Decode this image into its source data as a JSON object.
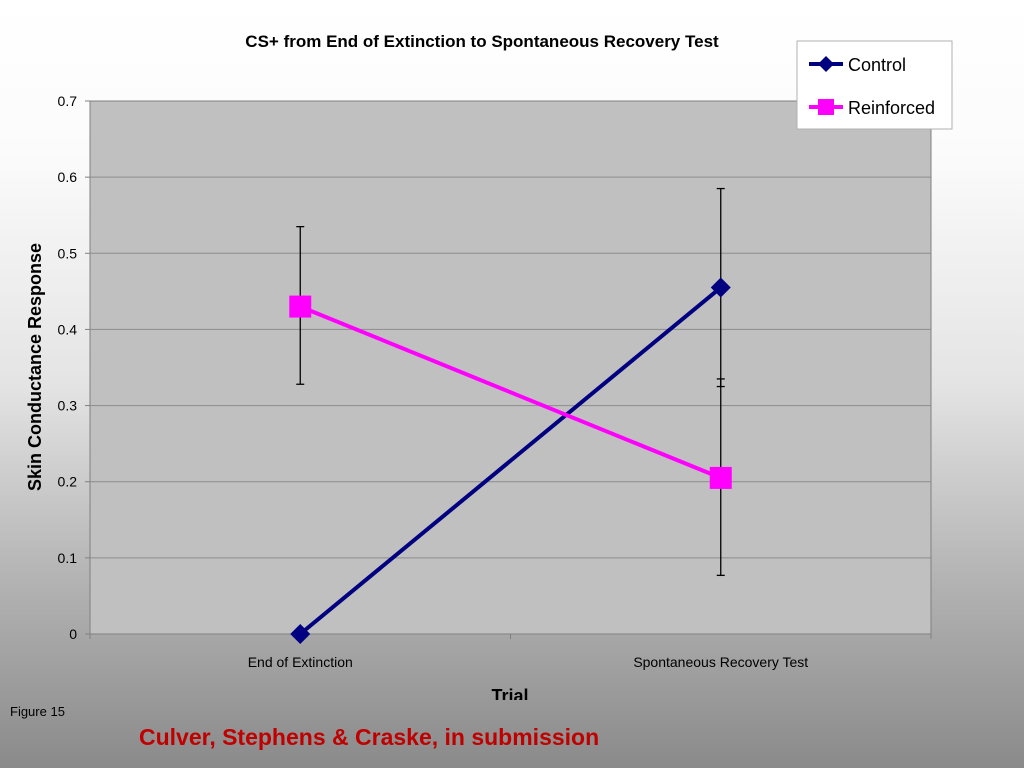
{
  "chart_data": {
    "type": "line",
    "title": "CS+ from End of Extinction to Spontaneous Recovery Test",
    "xlabel": "Trial",
    "ylabel": "Skin Conductance Response",
    "categories": [
      "End of Extinction",
      "Spontaneous Recovery Test"
    ],
    "ylim": [
      0,
      0.7
    ],
    "yticks": [
      "0",
      "0.1",
      "0.2",
      "0.3",
      "0.4",
      "0.5",
      "0.6",
      "0.7"
    ],
    "grid": true,
    "legend_position": "top-right",
    "series": [
      {
        "name": "Control",
        "color": "#000080",
        "marker": "diamond",
        "values": [
          0,
          0.455
        ],
        "error_low": [
          null,
          0.325
        ],
        "error_high": [
          null,
          0.585
        ]
      },
      {
        "name": "Reinforced",
        "color": "#ff00ff",
        "marker": "square",
        "values": [
          0.43,
          0.205
        ],
        "error_low": [
          0.328,
          0.077
        ],
        "error_high": [
          0.535,
          0.335
        ]
      }
    ]
  },
  "slide": {
    "figure_label": "Figure 15",
    "citation": "Culver, Stephens & Craske, in submission"
  }
}
